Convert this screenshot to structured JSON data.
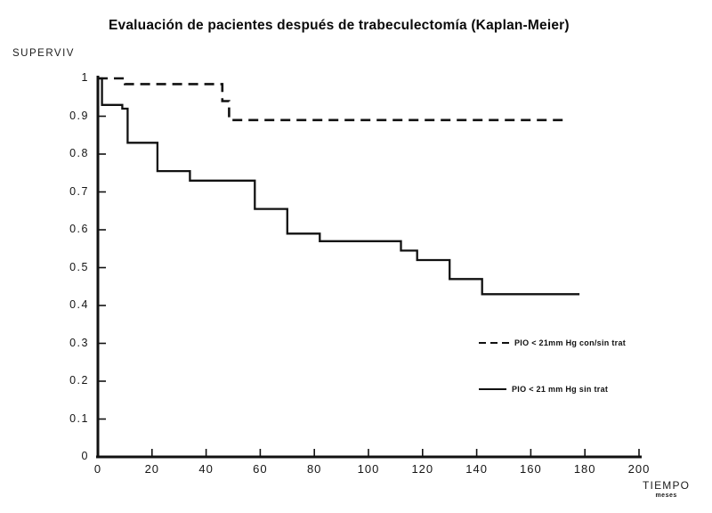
{
  "title": "Evaluación de pacientes después de trabeculectomía (Kaplan-Meier)",
  "y_axis_label": "SUPERVIV",
  "x_axis_label": "TIEMPO",
  "x_axis_sublabel": "meses",
  "colors": {
    "ink": "#111111",
    "background": "#ffffff"
  },
  "legend": {
    "items": [
      {
        "label": "PIO < 21mm Hg con/sin trat",
        "line_style": "dashed"
      },
      {
        "label": "PIO < 21 mm Hg sin trat",
        "line_style": "solid"
      }
    ]
  },
  "chart_data": {
    "type": "line",
    "subtype": "kaplan-meier-step",
    "title": "Evaluación de pacientes después de trabeculectomía (Kaplan-Meier)",
    "xlabel": "TIEMPO (meses)",
    "ylabel": "SUPERVIV",
    "xlim": [
      0,
      200
    ],
    "ylim": [
      0,
      1
    ],
    "grid": false,
    "legend_position": "right-center",
    "x_ticks": [
      0,
      20,
      40,
      60,
      80,
      100,
      120,
      140,
      160,
      180,
      200
    ],
    "y_ticks": [
      0,
      0.1,
      0.2,
      0.3,
      0.4,
      0.5,
      0.6,
      0.7,
      0.8,
      0.9,
      1
    ],
    "y_tick_labels": [
      "0",
      "0.1",
      "0.2",
      "0.3",
      "0.4",
      "0.5",
      "0.6",
      "0.7",
      "0.8",
      "0.9",
      "1"
    ],
    "series": [
      {
        "name": "PIO < 21mm Hg con/sin trat",
        "style": "dashed",
        "points": [
          [
            0,
            1.0
          ],
          [
            10,
            1.0
          ],
          [
            10,
            0.985
          ],
          [
            46,
            0.985
          ],
          [
            46,
            0.94
          ],
          [
            48.5,
            0.94
          ],
          [
            48.5,
            0.89
          ],
          [
            174,
            0.89
          ]
        ]
      },
      {
        "name": "PIO < 21 mm Hg sin trat",
        "style": "solid",
        "points": [
          [
            0,
            1.0
          ],
          [
            1.5,
            1.0
          ],
          [
            1.5,
            0.93
          ],
          [
            9,
            0.93
          ],
          [
            9,
            0.92
          ],
          [
            11,
            0.92
          ],
          [
            11,
            0.83
          ],
          [
            22,
            0.83
          ],
          [
            22,
            0.755
          ],
          [
            34,
            0.755
          ],
          [
            34,
            0.73
          ],
          [
            58,
            0.73
          ],
          [
            58,
            0.655
          ],
          [
            70,
            0.655
          ],
          [
            70,
            0.59
          ],
          [
            82,
            0.59
          ],
          [
            82,
            0.57
          ],
          [
            112,
            0.57
          ],
          [
            112,
            0.545
          ],
          [
            118,
            0.545
          ],
          [
            118,
            0.52
          ],
          [
            130,
            0.52
          ],
          [
            130,
            0.47
          ],
          [
            142,
            0.47
          ],
          [
            142,
            0.43
          ],
          [
            178,
            0.43
          ]
        ]
      }
    ]
  }
}
